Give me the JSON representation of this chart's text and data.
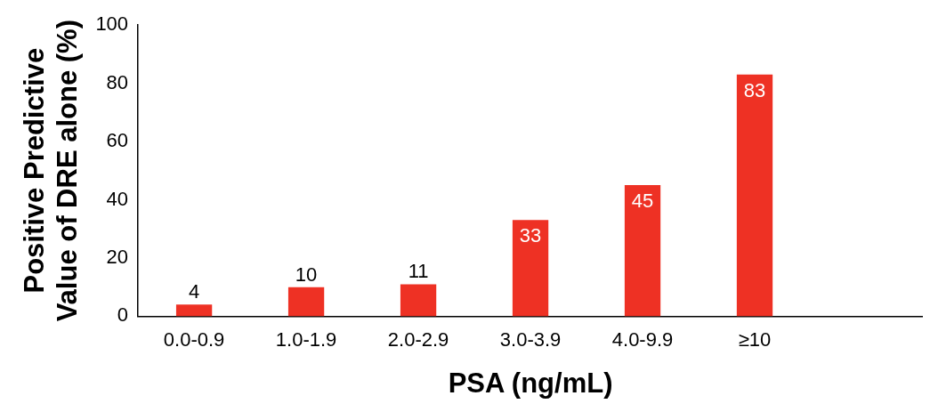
{
  "chart_data": {
    "type": "bar",
    "xlabel": "PSA (ng/mL)",
    "ylabel": "Positive Predictive Value of DRE alone (%)",
    "categories": [
      "0.0-0.9",
      "1.0-1.9",
      "2.0-2.9",
      "3.0-3.9",
      "4.0-9.9",
      "≥10",
      null
    ],
    "values": [
      4,
      10,
      11,
      33,
      45,
      83,
      null
    ],
    "color": "#ee3124",
    "ylim": [
      0,
      100
    ],
    "yticks": [
      0,
      20,
      40,
      60,
      80,
      100
    ],
    "grid": false,
    "legend": false,
    "data_labels": true
  }
}
